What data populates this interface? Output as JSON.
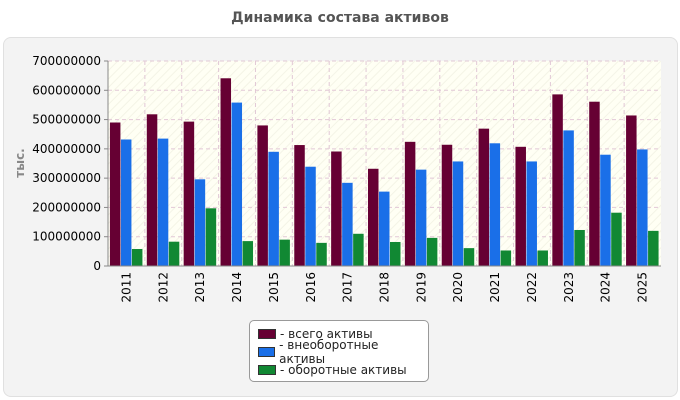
{
  "chart_data": {
    "type": "bar",
    "title": "Динамика состава активов",
    "ylabel": "тыс.",
    "xlabel": "",
    "ylim": [
      0,
      700000000
    ],
    "yticks": [
      0,
      100000000,
      200000000,
      300000000,
      400000000,
      500000000,
      600000000,
      700000000
    ],
    "grid": true,
    "legend_position": "bottom",
    "categories": [
      "2011",
      "2012",
      "2013",
      "2014",
      "2015",
      "2016",
      "2017",
      "2018",
      "2019",
      "2020",
      "2021",
      "2022",
      "2023",
      "2024",
      "2025"
    ],
    "series": [
      {
        "name": "- всего активы",
        "color": "#660033",
        "values": [
          490000000,
          518000000,
          493000000,
          641000000,
          480000000,
          413000000,
          391000000,
          332000000,
          424000000,
          414000000,
          469000000,
          407000000,
          586000000,
          561000000,
          514000000
        ]
      },
      {
        "name": "- внеоборотные активы",
        "color": "#1a6fe8",
        "values": [
          432000000,
          435000000,
          296000000,
          558000000,
          390000000,
          339000000,
          284000000,
          254000000,
          329000000,
          357000000,
          419000000,
          357000000,
          463000000,
          380000000,
          398000000
        ]
      },
      {
        "name": "- оборотные активы",
        "color": "#118833",
        "values": [
          58000000,
          83000000,
          197000000,
          85000000,
          90000000,
          79000000,
          110000000,
          82000000,
          96000000,
          61000000,
          53000000,
          53000000,
          123000000,
          182000000,
          120000000
        ]
      }
    ]
  }
}
